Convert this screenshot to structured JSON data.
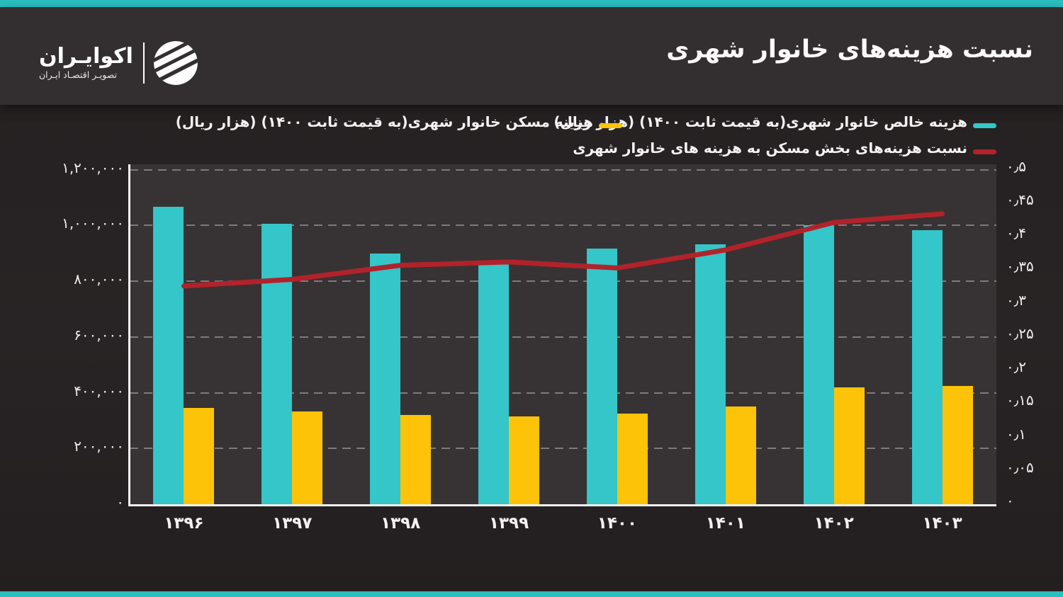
{
  "header": {
    "title": "نسبت هزینه‌های خانوار شهری"
  },
  "brand": {
    "name": "اکوایـران",
    "tagline": "تصویـر اقتصـاد ایـران"
  },
  "colors": {
    "accent_teal": "#2cbebf",
    "header_bg": "#332f30",
    "plot_bg": "#373334",
    "bar_teal": "#34c6c8",
    "bar_yellow": "#fdc308",
    "line_red": "#b2222a",
    "grid": "#969394",
    "text": "#ffffff"
  },
  "chart_data": {
    "type": "bar",
    "title": "نسبت هزینه‌های خانوار شهری",
    "categories": [
      "۱۳۹۶",
      "۱۳۹۷",
      "۱۳۹۸",
      "۱۳۹۹",
      "۱۴۰۰",
      "۱۴۰۱",
      "۱۴۰۲",
      "۱۴۰۳"
    ],
    "series": [
      {
        "name": "هزینه خالص خانوار شهری(به قیمت ثابت ۱۴۰۰) (هزار ریال)",
        "type": "bar",
        "axis": "left",
        "color": "#34c6c8",
        "values": [
          1067000,
          1006000,
          898000,
          861000,
          917000,
          931000,
          1000000,
          982000
        ]
      },
      {
        "name": "هزینه مسکن خانوار شهری(به قیمت ثابت ۱۴۰۰) (هزار ریال)",
        "type": "bar",
        "axis": "left",
        "color": "#fdc308",
        "values": [
          346000,
          334000,
          321000,
          314000,
          325000,
          350000,
          419000,
          425000
        ]
      },
      {
        "name": "نسبت هزینه‌های بخش مسکن به هزینه های خانوار شهری",
        "type": "line",
        "axis": "right",
        "color": "#b2222a",
        "values": [
          0.326,
          0.336,
          0.357,
          0.362,
          0.353,
          0.38,
          0.421,
          0.434
        ]
      }
    ],
    "left_axis": {
      "min": 0,
      "max": 1200000,
      "step": 200000,
      "tick_labels": [
        "۱,۲۰۰,۰۰۰",
        "۱,۰۰۰,۰۰۰",
        "۸۰۰,۰۰۰",
        "۶۰۰,۰۰۰",
        "۴۰۰,۰۰۰",
        "۲۰۰,۰۰۰",
        "۰"
      ]
    },
    "right_axis": {
      "min": 0,
      "max": 0.5,
      "step": 0.05,
      "tick_labels": [
        "۰٫۵",
        "۰٫۴۵",
        "۰٫۴",
        "۰٫۳۵",
        "۰٫۳",
        "۰٫۲۵",
        "۰٫۲",
        "۰٫۱۵",
        "۰٫۱",
        "۰٫۰۵",
        "۰"
      ]
    },
    "grid": "horizontal-dashed",
    "legend_position": "top"
  }
}
